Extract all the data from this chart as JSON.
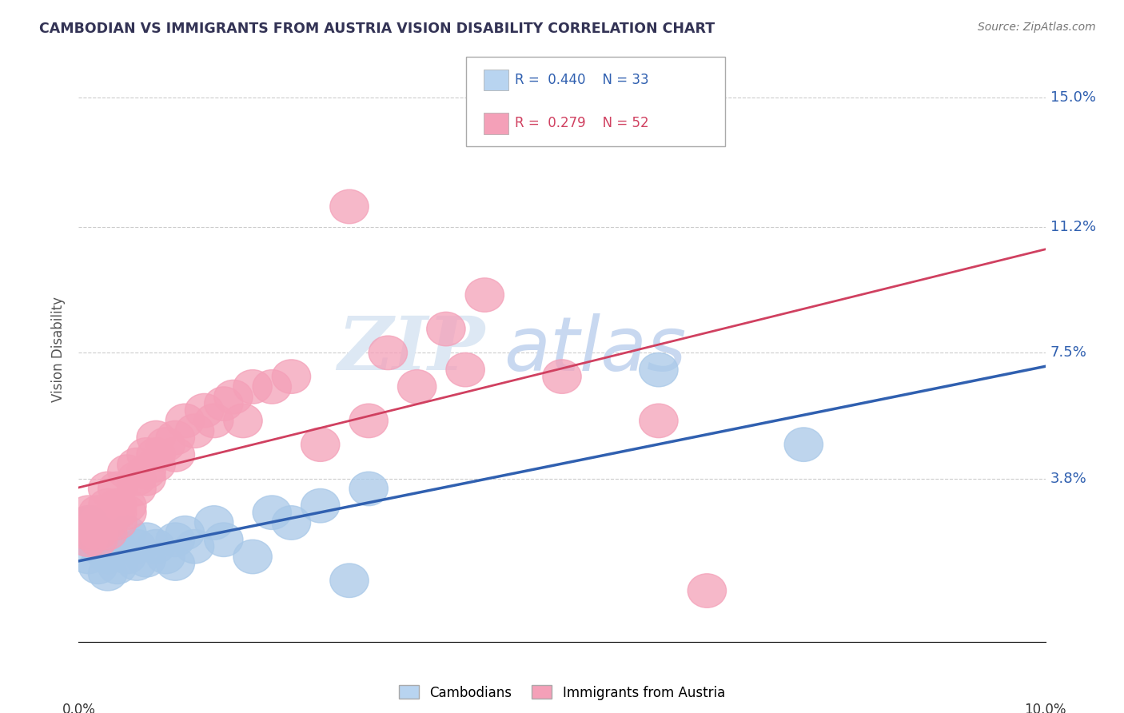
{
  "title": "CAMBODIAN VS IMMIGRANTS FROM AUSTRIA VISION DISABILITY CORRELATION CHART",
  "source": "Source: ZipAtlas.com",
  "ylabel": "Vision Disability",
  "ytick_labels": [
    "3.8%",
    "7.5%",
    "11.2%",
    "15.0%"
  ],
  "ytick_values": [
    0.038,
    0.075,
    0.112,
    0.15
  ],
  "xmin": 0.0,
  "xmax": 0.1,
  "ymin": -0.01,
  "ymax": 0.162,
  "blue_color": "#a8c8e8",
  "pink_color": "#f4a0b8",
  "blue_line_color": "#3060b0",
  "pink_line_color": "#d04060",
  "legend_color1": "#b8d4f0",
  "legend_color2": "#f4a0b8",
  "background_color": "#ffffff",
  "grid_color": "#cccccc",
  "watermark_zip": "ZIP",
  "watermark_atlas": "atlas",
  "cambodians_x": [
    0.001,
    0.001,
    0.001,
    0.002,
    0.002,
    0.002,
    0.003,
    0.003,
    0.003,
    0.004,
    0.004,
    0.005,
    0.005,
    0.006,
    0.006,
    0.007,
    0.007,
    0.008,
    0.009,
    0.01,
    0.01,
    0.011,
    0.012,
    0.014,
    0.015,
    0.018,
    0.02,
    0.022,
    0.025,
    0.028,
    0.03,
    0.06,
    0.075
  ],
  "cambodians_y": [
    0.025,
    0.02,
    0.015,
    0.022,
    0.018,
    0.012,
    0.02,
    0.015,
    0.01,
    0.018,
    0.012,
    0.022,
    0.015,
    0.018,
    0.013,
    0.02,
    0.014,
    0.018,
    0.015,
    0.02,
    0.013,
    0.022,
    0.018,
    0.025,
    0.02,
    0.015,
    0.028,
    0.025,
    0.03,
    0.008,
    0.035,
    0.07,
    0.048
  ],
  "austria_x": [
    0.001,
    0.001,
    0.001,
    0.001,
    0.002,
    0.002,
    0.002,
    0.002,
    0.003,
    0.003,
    0.003,
    0.003,
    0.004,
    0.004,
    0.004,
    0.004,
    0.005,
    0.005,
    0.005,
    0.006,
    0.006,
    0.006,
    0.007,
    0.007,
    0.007,
    0.008,
    0.008,
    0.008,
    0.009,
    0.01,
    0.01,
    0.011,
    0.012,
    0.013,
    0.014,
    0.015,
    0.016,
    0.017,
    0.018,
    0.02,
    0.022,
    0.025,
    0.028,
    0.03,
    0.032,
    0.035,
    0.038,
    0.04,
    0.042,
    0.05,
    0.06,
    0.065
  ],
  "austria_y": [
    0.025,
    0.022,
    0.02,
    0.028,
    0.025,
    0.022,
    0.028,
    0.02,
    0.025,
    0.03,
    0.022,
    0.035,
    0.028,
    0.03,
    0.025,
    0.035,
    0.03,
    0.028,
    0.04,
    0.035,
    0.038,
    0.042,
    0.038,
    0.045,
    0.04,
    0.042,
    0.05,
    0.045,
    0.048,
    0.05,
    0.045,
    0.055,
    0.052,
    0.058,
    0.055,
    0.06,
    0.062,
    0.055,
    0.065,
    0.065,
    0.068,
    0.048,
    0.118,
    0.055,
    0.075,
    0.065,
    0.082,
    0.07,
    0.092,
    0.068,
    0.055,
    0.005
  ]
}
